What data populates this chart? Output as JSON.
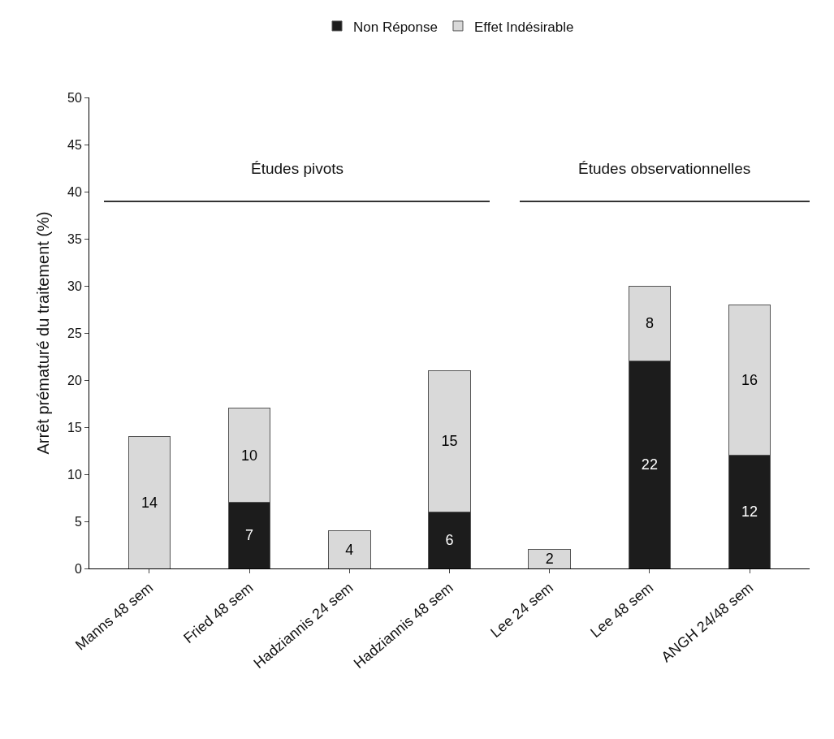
{
  "chart_data": {
    "type": "bar",
    "stacked": true,
    "ylabel": "Arrêt prématuré du traitement (%)",
    "categories": [
      "Manns 48 sem",
      "Fried 48 sem",
      "Hadziannis 24 sem",
      "Hadziannis 48 sem",
      "Lee 24 sem",
      "Lee 48 sem",
      "ANGH 24/48 sem"
    ],
    "series": [
      {
        "name": "Non Réponse",
        "color": "#1c1c1c",
        "values": [
          null,
          7,
          null,
          6,
          null,
          22,
          12
        ]
      },
      {
        "name": "Effet Indésirable",
        "color": "#d9d9d9",
        "values": [
          14,
          10,
          4,
          15,
          2,
          8,
          16
        ]
      }
    ],
    "ylim": [
      0,
      50
    ],
    "yticks": [
      0,
      5,
      10,
      15,
      20,
      25,
      30,
      35,
      40,
      45,
      50
    ],
    "grid": false,
    "legend": "top",
    "data_labels": true,
    "annotations": [
      "Études pivots",
      "Études observationnelles"
    ]
  }
}
